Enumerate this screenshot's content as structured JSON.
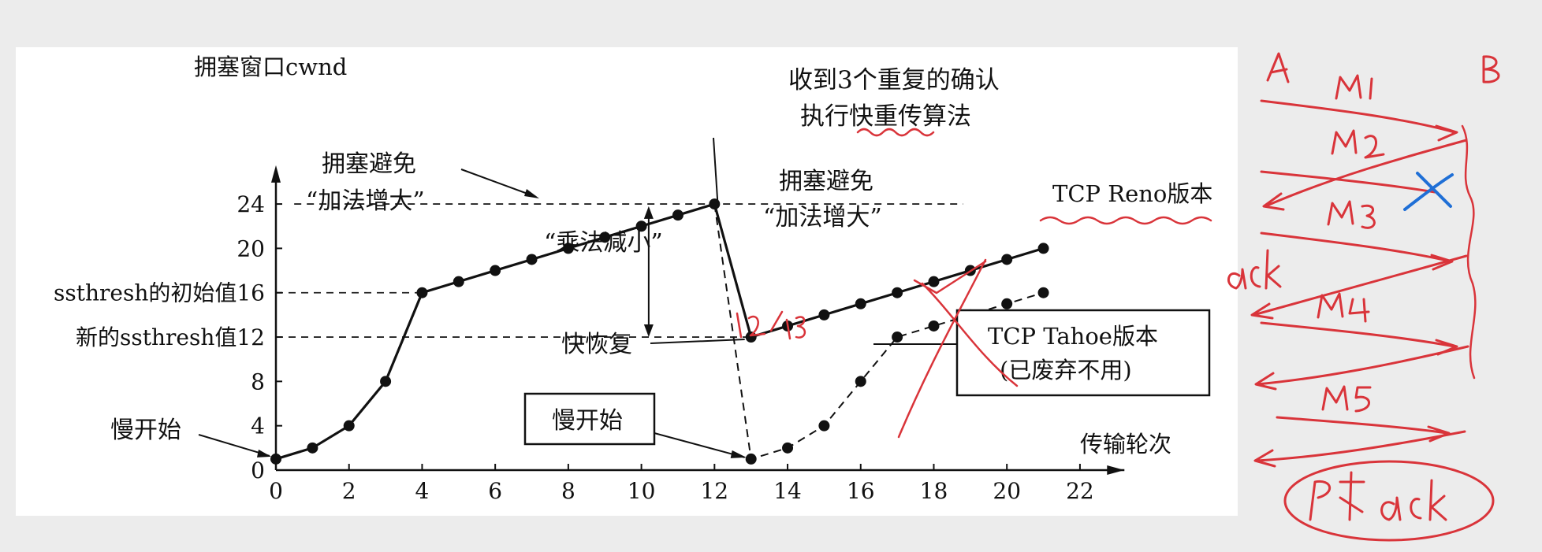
{
  "chart_data": {
    "type": "line",
    "ylabel": "拥塞窗口cwnd",
    "xlabel": "传输轮次",
    "x_ticks": [
      0,
      2,
      4,
      6,
      8,
      10,
      12,
      14,
      16,
      18,
      20,
      22
    ],
    "y_ticks": [
      0,
      4,
      8,
      12,
      16,
      20,
      24
    ],
    "xlim": [
      0,
      23
    ],
    "ylim": [
      0,
      26
    ],
    "y_tick_prefix": {
      "16": "ssthresh的初始值",
      "12": "新的ssthresh值"
    },
    "series": [
      {
        "name": "TCP Reno版本",
        "style": "solid",
        "x": [
          0,
          1,
          2,
          3,
          4,
          5,
          6,
          7,
          8,
          9,
          10,
          11,
          12,
          13,
          14,
          15,
          16,
          17,
          18,
          19,
          20,
          21
        ],
        "y": [
          1,
          2,
          4,
          8,
          16,
          17,
          18,
          19,
          20,
          21,
          22,
          23,
          24,
          12,
          13,
          14,
          15,
          16,
          17,
          18,
          19,
          20
        ]
      },
      {
        "name": "TCP Tahoe版本",
        "style": "dashed",
        "x": [
          12,
          13,
          14,
          15,
          16,
          17,
          18,
          19,
          20,
          21
        ],
        "y": [
          24,
          1,
          2,
          4,
          8,
          12,
          13,
          14,
          15,
          16
        ]
      }
    ],
    "annotations": {
      "three_dup_ack": [
        "收到3个重复的确认",
        "执行快重传算法"
      ],
      "ca_left": [
        "拥塞避免",
        "“加法增大”"
      ],
      "ca_right": [
        "拥塞避免",
        "“加法增大”"
      ],
      "mult_decrease": "“乘法减小”",
      "fast_recovery": "快恢复",
      "slow_start_left": "慢开始",
      "slow_start_box": "慢开始",
      "reno_label": "TCP Reno版本",
      "tahoe_box": [
        "TCP Tahoe版本",
        "(已废弃不用)"
      ]
    }
  },
  "handwriting": {
    "color": "#d9343a",
    "x_color": "#1f6fd6",
    "notes": [
      "A",
      "B",
      "M1",
      "M2",
      "M3",
      "M4",
      "M5",
      "ack",
      "12/13",
      "冗余ack"
    ]
  }
}
